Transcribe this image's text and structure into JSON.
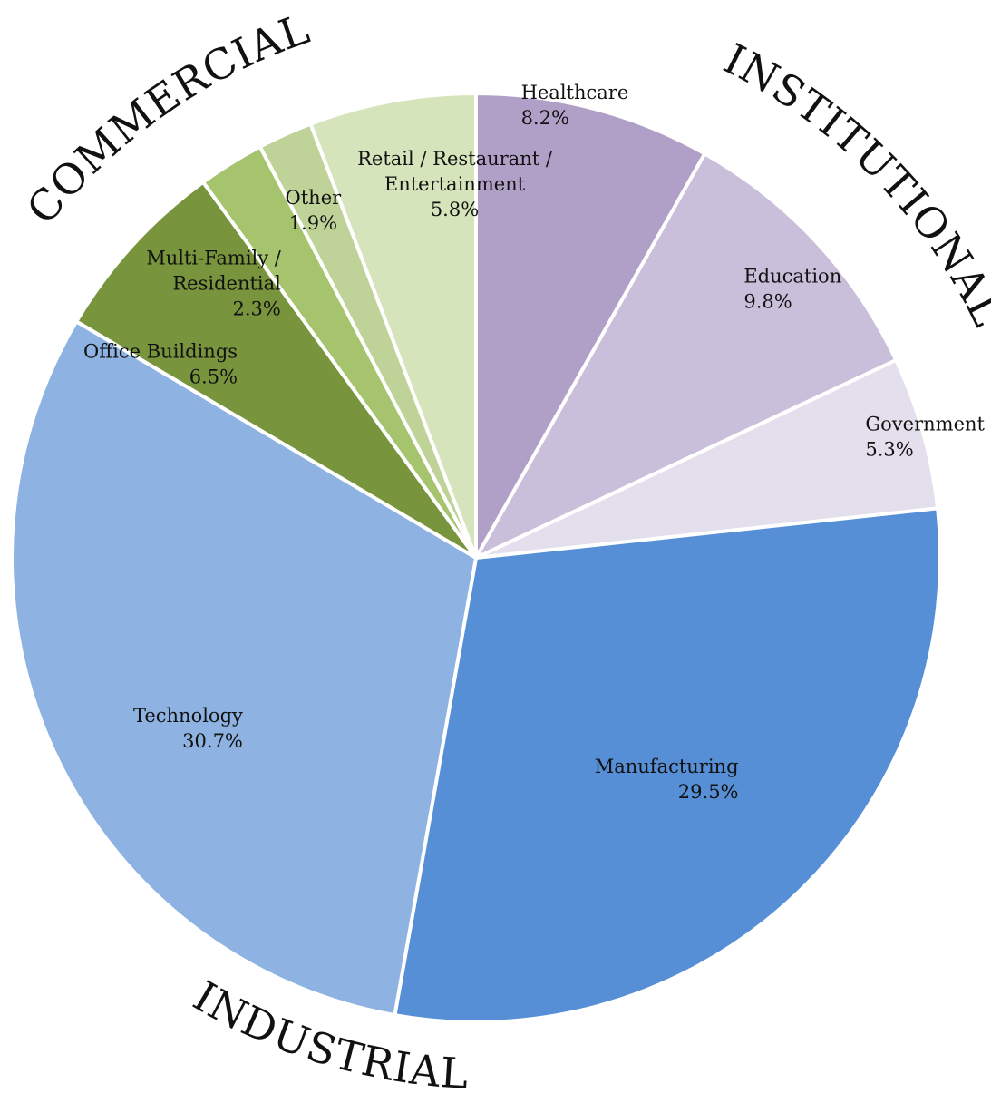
{
  "chart_data": {
    "type": "pie",
    "title": "",
    "groups": [
      {
        "name": "INSTITUTIONAL",
        "members": [
          "Healthcare",
          "Education",
          "Government"
        ]
      },
      {
        "name": "INDUSTRIAL",
        "members": [
          "Manufacturing",
          "Technology"
        ]
      },
      {
        "name": "COMMERCIAL",
        "members": [
          "Office Buildings",
          "Multi-Family / Residential",
          "Other",
          "Retail / Restaurant / Entertainment"
        ]
      }
    ],
    "slices": [
      {
        "label_lines": [
          "Healthcare"
        ],
        "value_label": "8.2%",
        "value": 8.2,
        "color": "#b0a0c8"
      },
      {
        "label_lines": [
          "Education"
        ],
        "value_label": "9.8%",
        "value": 9.8,
        "color": "#c9bfdb"
      },
      {
        "label_lines": [
          "Government"
        ],
        "value_label": "5.3%",
        "value": 5.3,
        "color": "#e4dfec"
      },
      {
        "label_lines": [
          "Manufacturing"
        ],
        "value_label": "29.5%",
        "value": 29.5,
        "color": "#568fd5"
      },
      {
        "label_lines": [
          "Technology"
        ],
        "value_label": "30.7%",
        "value": 30.7,
        "color": "#8eb3e2"
      },
      {
        "label_lines": [
          "Office Buildings"
        ],
        "value_label": "6.5%",
        "value": 6.5,
        "color": "#78943c"
      },
      {
        "label_lines": [
          "Multi-Family /",
          "Residential"
        ],
        "value_label": "2.3%",
        "value": 2.3,
        "color": "#a6c36e"
      },
      {
        "label_lines": [
          "Other"
        ],
        "value_label": "1.9%",
        "value": 1.9,
        "color": "#bfd398"
      },
      {
        "label_lines": [
          "Retail / Restaurant /",
          "Entertainment"
        ],
        "value_label": "5.8%",
        "value": 5.8,
        "color": "#d6e4bc"
      }
    ]
  }
}
